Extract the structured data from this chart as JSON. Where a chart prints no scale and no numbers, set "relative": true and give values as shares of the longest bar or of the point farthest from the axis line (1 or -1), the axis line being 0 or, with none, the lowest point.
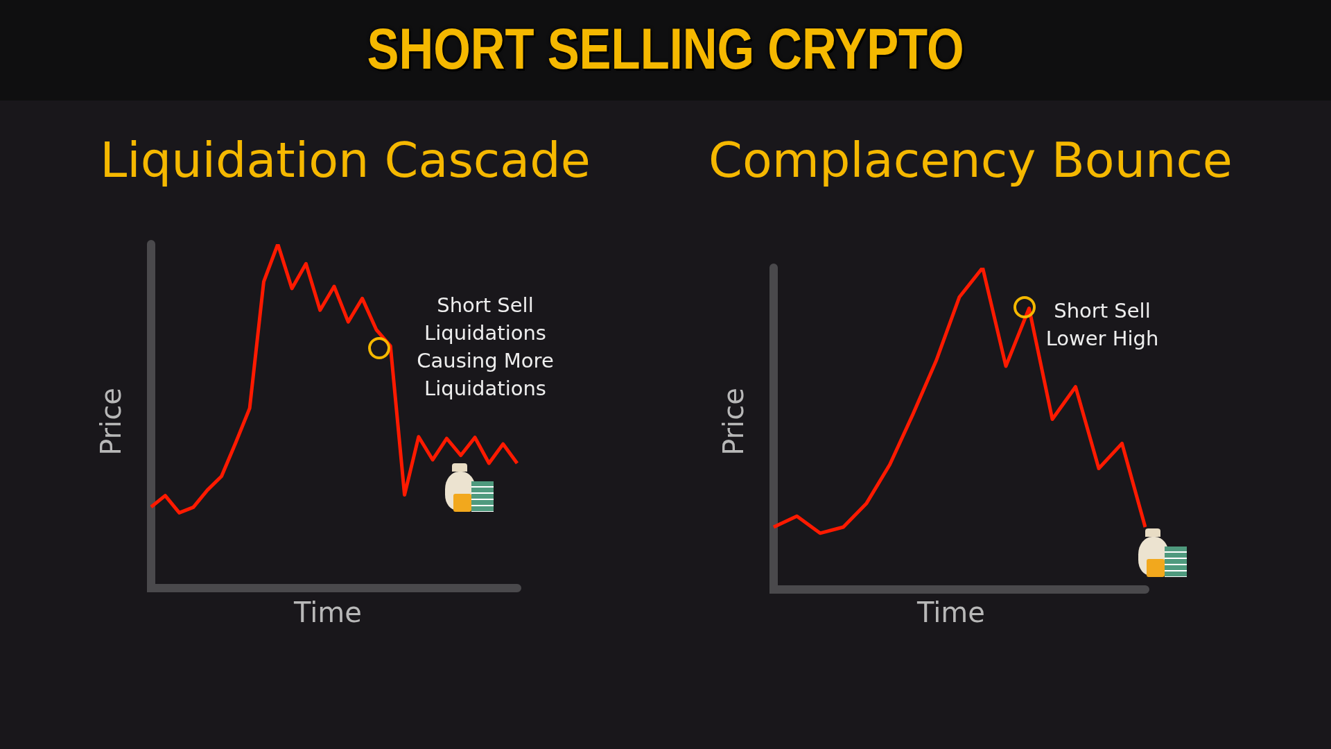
{
  "chart_data": [
    {
      "type": "line",
      "title": "SHORT SELLING CRYPTO",
      "subtitle": "Liquidation Cascade",
      "xlabel": "Time",
      "ylabel": "Price",
      "relative": true,
      "categories": [
        null,
        null,
        null,
        null,
        null,
        null,
        null,
        null,
        null,
        null,
        null,
        null,
        null,
        null,
        null,
        null,
        null,
        null,
        null,
        null,
        null,
        null,
        null,
        null,
        null,
        null,
        null
      ],
      "series": [
        {
          "color": "#ff1a00",
          "values": [
            0.236,
            0.269,
            0.219,
            0.235,
            0.285,
            0.325,
            0.422,
            0.523,
            0.891,
            1,
            0.871,
            0.943,
            0.808,
            0.877,
            0.774,
            0.842,
            0.751,
            0.704,
            0.271,
            0.44,
            0.373,
            0.435,
            0.386,
            0.438,
            0.363,
            0.419,
            0.363
          ]
        }
      ],
      "annotations": [
        "Short Sell\nLiquidations\nCausing More\nLiquidations"
      ]
    },
    {
      "type": "line",
      "subtitle": "Complacency Bounce",
      "xlabel": "Time",
      "ylabel": "Price",
      "relative": true,
      "categories": [
        null,
        null,
        null,
        null,
        null,
        null,
        null,
        null,
        null,
        null,
        null,
        null,
        null,
        null,
        null,
        null,
        null
      ],
      "series": [
        {
          "color": "#ff1a00",
          "values": [
            0.194,
            0.228,
            0.175,
            0.194,
            0.268,
            0.388,
            0.545,
            0.711,
            0.909,
            1,
            0.694,
            0.874,
            0.529,
            0.63,
            0.376,
            0.454,
            0.194
          ]
        }
      ],
      "annotations": [
        "Short Sell\nLower High"
      ]
    }
  ]
}
